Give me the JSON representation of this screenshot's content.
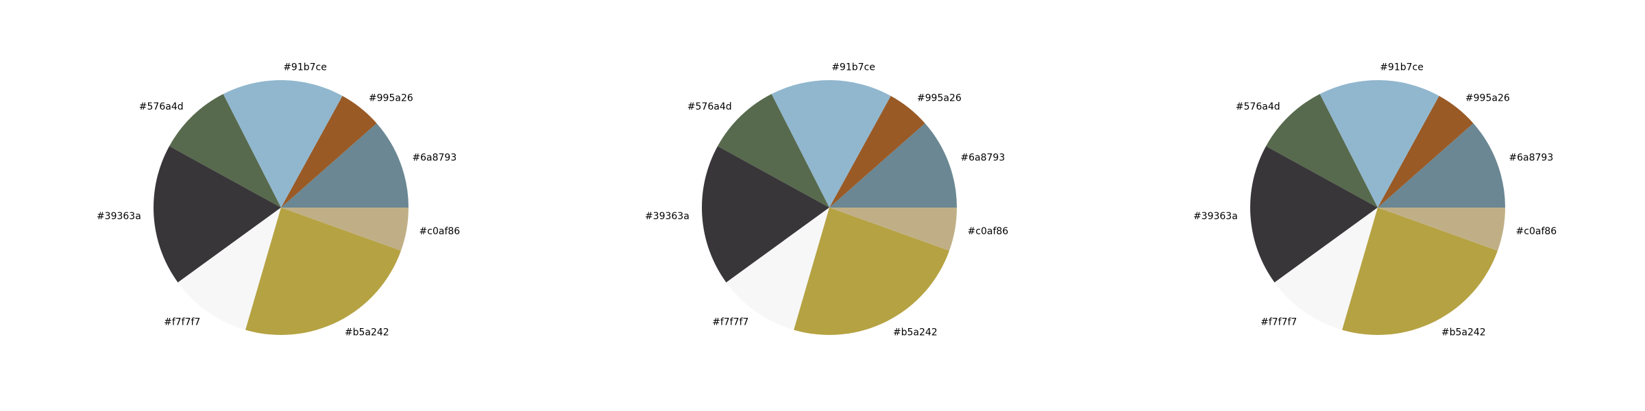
{
  "chart_data": [
    {
      "type": "pie",
      "title": "",
      "labels": [
        "#6a8793",
        "#995a26",
        "#91b7ce",
        "#576a4d",
        "#39363a",
        "#f7f7f7",
        "#b5a242",
        "#c0af86"
      ],
      "values": [
        11.5,
        5.5,
        15.5,
        9.5,
        18.0,
        10.5,
        24.0,
        5.5
      ],
      "colors": [
        "#6a8793",
        "#995a26",
        "#91b7ce",
        "#576a4d",
        "#39363a",
        "#f7f7f7",
        "#b5a242",
        "#c0af86"
      ],
      "start_angle": 0,
      "direction": "counterclockwise"
    },
    {
      "type": "pie",
      "title": "",
      "labels": [
        "#6a8793",
        "#995a26",
        "#91b7ce",
        "#576a4d",
        "#39363a",
        "#f7f7f7",
        "#b5a242",
        "#c0af86"
      ],
      "values": [
        11.5,
        5.5,
        15.5,
        9.5,
        18.0,
        10.5,
        24.0,
        5.5
      ],
      "colors": [
        "#6a8793",
        "#995a26",
        "#91b7ce",
        "#576a4d",
        "#39363a",
        "#f7f7f7",
        "#b5a242",
        "#c0af86"
      ],
      "start_angle": 0,
      "direction": "counterclockwise"
    },
    {
      "type": "pie",
      "title": "",
      "labels": [
        "#6a8793",
        "#995a26",
        "#91b7ce",
        "#576a4d",
        "#39363a",
        "#f7f7f7",
        "#b5a242",
        "#c0af86"
      ],
      "values": [
        11.5,
        5.5,
        15.5,
        9.5,
        18.0,
        10.5,
        24.0,
        5.5
      ],
      "colors": [
        "#6a8793",
        "#995a26",
        "#91b7ce",
        "#576a4d",
        "#39363a",
        "#f7f7f7",
        "#b5a242",
        "#c0af86"
      ],
      "start_angle": 0,
      "direction": "counterclockwise"
    }
  ]
}
